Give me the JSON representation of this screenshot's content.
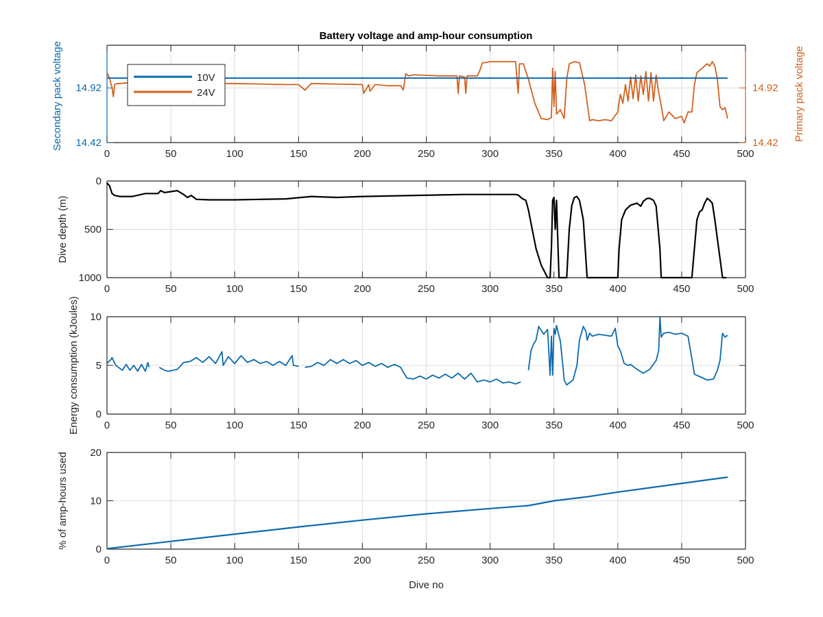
{
  "figure_title": "Battery voltage and amp-hour consumption",
  "colors": {
    "blue": "#0b6aad",
    "orange": "#d2601c",
    "black": "#000000",
    "axis": "#262626"
  },
  "chart_data": [
    {
      "type": "line",
      "title": "Battery voltage and amp-hour consumption",
      "xlabel": "",
      "ylabel_left": "Secondary pack voltage",
      "ylabel_right": "Primary pack voltage",
      "xlim": [
        0,
        500
      ],
      "ylim": [
        14.42,
        15.31
      ],
      "xticks": [
        "0",
        "50",
        "100",
        "150",
        "200",
        "250",
        "300",
        "350",
        "400",
        "450",
        "500"
      ],
      "yticks_left": [
        "14.42",
        "14.92"
      ],
      "yticks_right": [
        "14.42",
        "14.92"
      ],
      "grid": true,
      "legend": {
        "placement": "top-left",
        "entries": [
          "10V",
          "24V"
        ]
      },
      "series": [
        {
          "name": "10V",
          "x": [
            0,
            486
          ],
          "y": [
            15.01,
            15.01
          ]
        },
        {
          "name": "24V",
          "x": [
            0,
            2,
            4,
            5,
            6,
            8,
            10,
            20,
            40,
            60,
            100,
            140,
            150,
            155,
            160,
            200,
            201,
            205,
            206,
            210,
            220,
            230,
            232,
            234,
            236,
            240,
            260,
            274,
            275,
            276,
            280,
            281,
            282,
            290,
            292,
            294,
            296,
            300,
            320,
            321,
            322,
            323,
            326,
            330,
            335,
            340,
            345,
            348,
            349,
            350,
            351,
            352,
            355,
            358,
            360,
            362,
            366,
            370,
            372,
            374,
            378,
            380,
            385,
            390,
            395,
            400,
            402,
            404,
            406,
            408,
            410,
            412,
            414,
            416,
            418,
            420,
            422,
            424,
            426,
            428,
            430,
            432,
            434,
            436,
            440,
            445,
            450,
            452,
            455,
            458,
            460,
            462,
            466,
            470,
            472,
            474,
            476,
            478,
            480,
            482,
            484,
            486
          ],
          "y": [
            15.06,
            15.01,
            14.92,
            14.84,
            14.95,
            14.96,
            14.96,
            14.97,
            14.96,
            14.96,
            14.96,
            14.95,
            14.95,
            14.9,
            14.96,
            14.95,
            14.87,
            14.95,
            14.89,
            14.95,
            14.94,
            14.94,
            14.9,
            15.05,
            15.03,
            15.04,
            15.03,
            15.03,
            14.87,
            15.03,
            15.02,
            14.87,
            15.03,
            15.03,
            15.08,
            15.15,
            15.15,
            15.16,
            15.16,
            15.0,
            14.87,
            15.14,
            15.14,
            15.0,
            14.78,
            14.64,
            14.63,
            14.65,
            15.1,
            14.75,
            15.07,
            14.68,
            14.72,
            14.64,
            15.0,
            15.14,
            15.16,
            15.15,
            15.05,
            14.95,
            14.62,
            14.63,
            14.62,
            14.63,
            14.62,
            14.7,
            14.86,
            14.78,
            14.95,
            14.8,
            15.02,
            14.82,
            15.04,
            14.8,
            15.03,
            14.86,
            15.07,
            14.8,
            15.06,
            14.8,
            15.04,
            14.88,
            14.76,
            14.62,
            14.7,
            14.64,
            14.66,
            14.6,
            14.7,
            14.7,
            14.95,
            15.06,
            15.1,
            15.14,
            15.12,
            15.16,
            15.12,
            15.0,
            14.75,
            14.72,
            14.74,
            14.64
          ]
        }
      ]
    },
    {
      "type": "line",
      "xlabel": "",
      "ylabel": "Dive depth (m)",
      "xlim": [
        0,
        500
      ],
      "ylim": [
        1000,
        0
      ],
      "y_reversed": true,
      "xticks": [
        "0",
        "50",
        "100",
        "150",
        "200",
        "250",
        "300",
        "350",
        "400",
        "450",
        "500"
      ],
      "yticks": [
        "0",
        "500",
        "1000"
      ],
      "grid": true,
      "series": [
        {
          "name": "depth",
          "x": [
            0,
            2,
            4,
            6,
            10,
            20,
            30,
            40,
            42,
            45,
            50,
            55,
            60,
            63,
            66,
            70,
            80,
            100,
            120,
            140,
            160,
            180,
            200,
            220,
            240,
            260,
            280,
            300,
            320,
            322,
            325,
            328,
            330,
            333,
            336,
            340,
            345,
            347,
            348,
            349,
            350,
            351,
            352,
            354,
            356,
            360,
            362,
            364,
            366,
            368,
            370,
            373,
            376,
            380,
            400,
            401,
            403,
            406,
            410,
            415,
            418,
            420,
            423,
            425,
            428,
            430,
            433,
            434,
            440,
            458,
            460,
            462,
            464,
            466,
            468,
            470,
            472,
            474,
            476,
            478,
            480,
            482,
            485
          ],
          "y": [
            20,
            50,
            130,
            150,
            160,
            160,
            130,
            130,
            100,
            120,
            110,
            100,
            140,
            170,
            150,
            190,
            195,
            195,
            190,
            185,
            160,
            170,
            160,
            155,
            150,
            145,
            140,
            140,
            140,
            145,
            180,
            200,
            300,
            500,
            700,
            870,
            1000,
            1000,
            700,
            200,
            170,
            500,
            200,
            1000,
            1000,
            1000,
            500,
            250,
            170,
            160,
            200,
            400,
            1000,
            1000,
            1000,
            700,
            400,
            300,
            250,
            230,
            260,
            210,
            180,
            180,
            200,
            260,
            700,
            1000,
            1000,
            1000,
            700,
            400,
            320,
            300,
            230,
            180,
            200,
            230,
            400,
            600,
            800,
            1000,
            1000
          ]
        }
      ]
    },
    {
      "type": "line",
      "xlabel": "",
      "ylabel": "Energy consumption (kJoules)",
      "xlim": [
        0,
        500
      ],
      "ylim": [
        0,
        10
      ],
      "xticks": [
        "0",
        "50",
        "100",
        "150",
        "200",
        "250",
        "300",
        "350",
        "400",
        "450",
        "500"
      ],
      "yticks": [
        "0",
        "5",
        "10"
      ],
      "grid": true,
      "series": [
        {
          "name": "energy",
          "segments": [
            {
              "x": [
                0,
                3,
                4,
                5,
                7,
                9,
                12,
                15,
                18,
                21,
                24,
                27,
                30,
                32,
                33
              ],
              "y": [
                5.2,
                5.6,
                5.8,
                5.5,
                5.0,
                4.8,
                4.5,
                5.1,
                4.5,
                5.0,
                4.4,
                5.1,
                4.4,
                5.3,
                4.8
              ]
            },
            {
              "x": [
                41,
                45,
                48,
                52,
                55,
                58,
                60,
                65,
                70,
                75,
                80,
                85,
                90,
                91,
                95,
                100,
                105,
                110,
                115,
                120,
                125,
                130,
                135,
                140,
                145,
                146,
                150
              ],
              "y": [
                4.8,
                4.5,
                4.4,
                4.5,
                4.6,
                5.0,
                5.3,
                5.4,
                5.8,
                5.3,
                5.9,
                5.2,
                6.4,
                5.0,
                5.9,
                5.2,
                6.0,
                5.3,
                5.6,
                5.2,
                5.4,
                5.0,
                5.4,
                5.0,
                6.0,
                5.0,
                4.9
              ]
            },
            {
              "x": [
                155,
                160,
                165,
                170,
                175,
                180,
                185,
                190,
                195,
                200,
                205,
                210,
                215,
                220,
                225,
                230,
                232,
                235,
                240,
                245,
                250,
                255,
                260,
                265,
                270,
                275,
                280,
                285,
                290,
                295,
                300,
                305,
                310,
                315,
                320,
                324
              ],
              "y": [
                4.8,
                4.9,
                5.3,
                5.0,
                5.6,
                5.2,
                5.6,
                5.2,
                5.5,
                5.0,
                5.3,
                4.9,
                5.2,
                4.8,
                5.1,
                4.8,
                4.3,
                3.7,
                3.6,
                3.9,
                3.6,
                4.0,
                3.7,
                4.1,
                3.7,
                4.2,
                3.6,
                4.2,
                3.3,
                3.5,
                3.3,
                3.6,
                3.2,
                3.3,
                3.1,
                3.3
              ]
            },
            {
              "x": [
                330,
                332,
                334,
                336,
                338,
                340,
                342,
                345,
                347,
                348,
                349,
                350,
                351,
                352,
                355,
                357,
                358,
                360,
                362,
                365,
                368,
                370,
                373,
                375,
                376,
                378,
                380,
                385,
                390,
                395,
                398,
                400,
                402,
                405,
                408,
                410,
                415,
                420,
                425,
                430,
                432,
                433,
                434,
                436,
                440,
                445,
                450,
                455,
                456,
                458,
                460,
                465,
                470,
                475,
                478,
                480,
                482,
                484,
                486
              ],
              "y": [
                4.5,
                6.5,
                7.2,
                7.6,
                9.0,
                8.6,
                8.2,
                8.7,
                4.0,
                8.0,
                4.0,
                8.8,
                8.2,
                9.1,
                7.5,
                5.0,
                3.5,
                3.0,
                3.2,
                3.5,
                5.0,
                7.6,
                9.0,
                8.5,
                7.6,
                8.3,
                8.0,
                8.2,
                8.1,
                8.0,
                8.8,
                7.0,
                6.5,
                5.2,
                5.0,
                5.1,
                4.6,
                4.2,
                4.6,
                5.5,
                6.5,
                10.0,
                7.9,
                8.3,
                8.4,
                8.2,
                8.3,
                8.0,
                7.2,
                5.7,
                4.1,
                3.8,
                3.5,
                3.6,
                4.5,
                5.5,
                8.3,
                7.9,
                8.1
              ]
            }
          ]
        }
      ]
    },
    {
      "type": "line",
      "xlabel": "Dive no",
      "ylabel": "% of amp-hours used",
      "xlim": [
        0,
        500
      ],
      "ylim": [
        0,
        20
      ],
      "xticks": [
        "0",
        "50",
        "100",
        "150",
        "200",
        "250",
        "300",
        "350",
        "400",
        "450",
        "500"
      ],
      "yticks": [
        "0",
        "10",
        "20"
      ],
      "grid": true,
      "series": [
        {
          "name": "ah_used",
          "x": [
            0,
            50,
            100,
            150,
            200,
            250,
            300,
            330,
            350,
            375,
            400,
            450,
            486
          ],
          "y": [
            0.1,
            1.6,
            3.1,
            4.6,
            6.0,
            7.3,
            8.4,
            9.0,
            10.0,
            10.8,
            11.8,
            13.6,
            14.9
          ]
        }
      ]
    }
  ]
}
